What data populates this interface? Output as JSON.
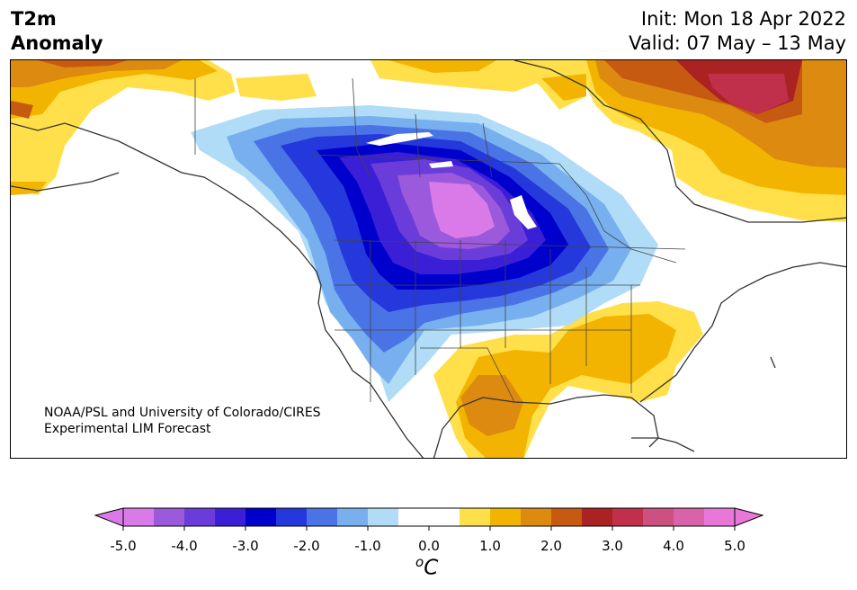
{
  "header": {
    "title_line1": "T2m",
    "title_line2": "Anomaly",
    "init": "Init: Mon 18 Apr 2022",
    "valid": "Valid: 07 May – 13 May"
  },
  "credit": {
    "line1": "NOAA/PSL and University of Colorado/CIRES",
    "line2": "Experimental LIM Forecast"
  },
  "colorbar": {
    "units_base": "C",
    "units_sup": "o",
    "tick_labels": [
      "-5.0",
      "-4.0",
      "-3.0",
      "-2.0",
      "-1.0",
      "0.0",
      "1.0",
      "2.0",
      "3.0",
      "4.0",
      "5.0"
    ],
    "colors": [
      "#d97ae8",
      "#9b59dc",
      "#6a3ddb",
      "#3a1fd6",
      "#0000cd",
      "#2438dc",
      "#4a74e6",
      "#78afef",
      "#b0dcf8",
      "#ffffff",
      "#ffffff",
      "#ffe04a",
      "#f2b400",
      "#dd8a10",
      "#c65a10",
      "#aa2222",
      "#c0304a",
      "#cc5080",
      "#d863a8",
      "#e878d8"
    ],
    "under_color": "#d97ae8",
    "over_color": "#e878d8"
  },
  "map": {
    "region": "North America",
    "coast_color": "#333333",
    "border_color": "#444444"
  }
}
